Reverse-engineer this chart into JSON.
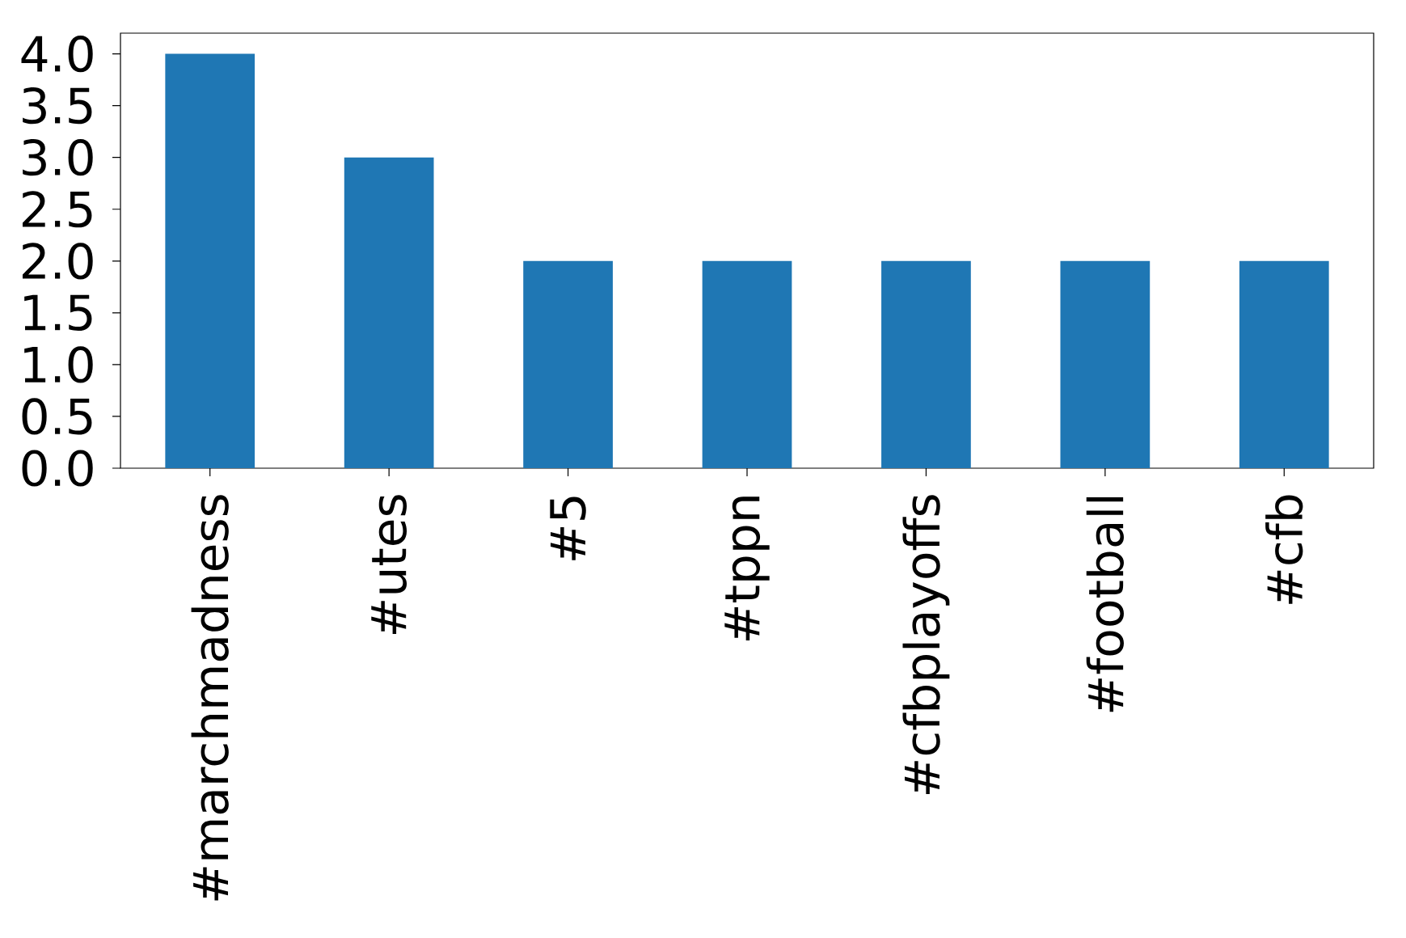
{
  "chart_data": {
    "type": "bar",
    "categories": [
      "#marchmadness",
      "#utes",
      "#5",
      "#tppn",
      "#cfbplayoffs",
      "#football",
      "#cfb"
    ],
    "values": [
      4,
      3,
      2,
      2,
      2,
      2,
      2
    ],
    "color": "#1f77b4",
    "ylim": [
      0,
      4.2
    ],
    "yticks": [
      {
        "value": 0,
        "label": "0.0"
      },
      {
        "value": 0.5,
        "label": "0.5"
      },
      {
        "value": 1,
        "label": "1.0"
      },
      {
        "value": 1.5,
        "label": "1.5"
      },
      {
        "value": 2,
        "label": "2.0"
      },
      {
        "value": 2.5,
        "label": "2.5"
      },
      {
        "value": 3,
        "label": "3.0"
      },
      {
        "value": 3.5,
        "label": "3.5"
      },
      {
        "value": 4,
        "label": "4.0"
      }
    ]
  }
}
